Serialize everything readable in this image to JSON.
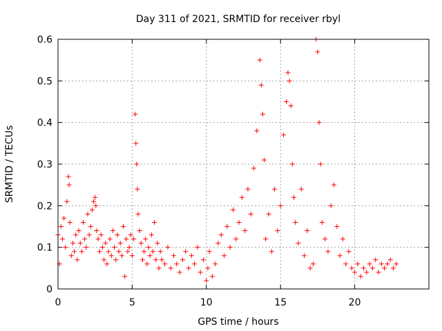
{
  "chart_data": {
    "type": "scatter",
    "title": "Day 311 of 2021, SRMTID for receiver rbyl",
    "xlabel": "GPS time / hours",
    "ylabel": "SRMTID / TECUs",
    "xlim": [
      0,
      25
    ],
    "ylim": [
      0,
      0.6
    ],
    "xticks": [
      0,
      5,
      10,
      15,
      20
    ],
    "xtick_labels": [
      "0",
      "5",
      "10",
      "15",
      "20"
    ],
    "yticks": [
      0,
      0.1,
      0.2,
      0.3,
      0.4,
      0.5,
      0.6
    ],
    "ytick_labels": [
      "0",
      "0.1",
      "0.2",
      "0.3",
      "0.4",
      "0.5",
      "0.6"
    ],
    "grid": true,
    "marker": "+",
    "color": "#ff0000",
    "series": [
      {
        "name": "SRMTID",
        "x": [
          0.0,
          0.1,
          0.2,
          0.3,
          0.4,
          0.5,
          0.6,
          0.7,
          0.75,
          0.8,
          0.9,
          1.0,
          1.1,
          1.2,
          1.3,
          1.4,
          1.5,
          1.6,
          1.7,
          1.8,
          1.9,
          2.0,
          2.1,
          2.2,
          2.3,
          2.4,
          2.5,
          2.55,
          2.6,
          2.7,
          2.8,
          2.9,
          3.0,
          3.1,
          3.2,
          3.3,
          3.4,
          3.5,
          3.6,
          3.7,
          3.8,
          3.9,
          4.0,
          4.1,
          4.2,
          4.3,
          4.4,
          4.5,
          4.6,
          4.7,
          4.8,
          4.9,
          5.0,
          5.1,
          5.2,
          5.25,
          5.3,
          5.35,
          5.4,
          5.5,
          5.6,
          5.7,
          5.8,
          5.9,
          6.0,
          6.1,
          6.2,
          6.3,
          6.4,
          6.5,
          6.6,
          6.7,
          6.8,
          6.9,
          7.0,
          7.2,
          7.4,
          7.6,
          7.8,
          8.0,
          8.2,
          8.4,
          8.6,
          8.8,
          9.0,
          9.2,
          9.4,
          9.6,
          9.8,
          10.0,
          10.1,
          10.2,
          10.4,
          10.6,
          10.8,
          11.0,
          11.2,
          11.4,
          11.6,
          11.8,
          12.0,
          12.2,
          12.4,
          12.6,
          12.8,
          13.0,
          13.2,
          13.4,
          13.6,
          13.7,
          13.8,
          13.9,
          14.0,
          14.2,
          14.4,
          14.6,
          14.8,
          15.0,
          15.2,
          15.4,
          15.5,
          15.6,
          15.7,
          15.8,
          15.9,
          16.0,
          16.2,
          16.4,
          16.6,
          16.8,
          17.0,
          17.2,
          17.4,
          17.5,
          17.6,
          17.7,
          17.8,
          18.0,
          18.2,
          18.4,
          18.6,
          18.8,
          19.0,
          19.2,
          19.4,
          19.6,
          19.8,
          20.0,
          20.2,
          20.4,
          20.6,
          20.8,
          21.0,
          21.2,
          21.4,
          21.6,
          21.8,
          22.0,
          22.2,
          22.4,
          22.6,
          22.8
        ],
        "y": [
          0.13,
          0.06,
          0.15,
          0.12,
          0.17,
          0.1,
          0.21,
          0.27,
          0.25,
          0.16,
          0.08,
          0.11,
          0.09,
          0.13,
          0.07,
          0.14,
          0.11,
          0.09,
          0.16,
          0.12,
          0.1,
          0.18,
          0.13,
          0.15,
          0.19,
          0.21,
          0.22,
          0.2,
          0.14,
          0.12,
          0.09,
          0.13,
          0.1,
          0.07,
          0.11,
          0.06,
          0.09,
          0.12,
          0.08,
          0.14,
          0.1,
          0.07,
          0.13,
          0.09,
          0.11,
          0.08,
          0.15,
          0.03,
          0.12,
          0.09,
          0.1,
          0.13,
          0.08,
          0.12,
          0.42,
          0.35,
          0.3,
          0.24,
          0.18,
          0.14,
          0.11,
          0.07,
          0.09,
          0.12,
          0.06,
          0.1,
          0.08,
          0.13,
          0.09,
          0.16,
          0.07,
          0.11,
          0.05,
          0.09,
          0.07,
          0.06,
          0.1,
          0.05,
          0.08,
          0.06,
          0.04,
          0.07,
          0.09,
          0.05,
          0.08,
          0.06,
          0.1,
          0.04,
          0.07,
          0.02,
          0.05,
          0.09,
          0.03,
          0.06,
          0.11,
          0.13,
          0.08,
          0.15,
          0.1,
          0.19,
          0.12,
          0.16,
          0.22,
          0.14,
          0.24,
          0.18,
          0.29,
          0.38,
          0.55,
          0.49,
          0.42,
          0.31,
          0.12,
          0.18,
          0.09,
          0.24,
          0.14,
          0.2,
          0.37,
          0.45,
          0.52,
          0.5,
          0.44,
          0.3,
          0.22,
          0.16,
          0.11,
          0.24,
          0.08,
          0.14,
          0.05,
          0.06,
          0.6,
          0.57,
          0.4,
          0.3,
          0.16,
          0.12,
          0.09,
          0.2,
          0.25,
          0.15,
          0.08,
          0.12,
          0.06,
          0.09,
          0.05,
          0.04,
          0.06,
          0.03,
          0.05,
          0.04,
          0.06,
          0.05,
          0.07,
          0.04,
          0.06,
          0.05,
          0.06,
          0.07,
          0.05,
          0.06
        ]
      }
    ]
  }
}
